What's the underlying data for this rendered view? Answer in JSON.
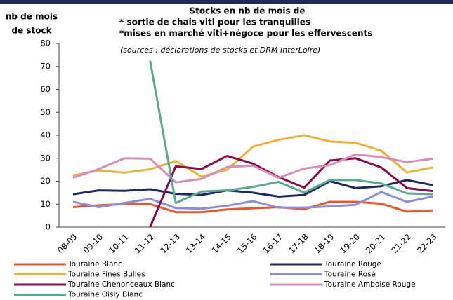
{
  "chart_data": {
    "type": "line",
    "title_lines": [
      "Stocks en nb de mois de",
      "* sortie de chais viti pour les tranquilles",
      "*mises en marché viti+négoce pour les effervescents"
    ],
    "subtitle": "(sources : déclarations de stocks et DRM InterLoire)",
    "y_label_lines": [
      "nb de mois",
      "de stock"
    ],
    "categories": [
      "08-09",
      "09-10",
      "10-11",
      "11-12",
      "12-13",
      "13-14",
      "14-15",
      "15-16",
      "16-17",
      "17-18",
      "18-19",
      "19-20",
      "20-21",
      "21-22",
      "22-23"
    ],
    "ylim": [
      0,
      80
    ],
    "yticks": [
      0,
      10,
      20,
      30,
      40,
      50,
      60,
      70,
      80
    ],
    "series": [
      {
        "name": "Touraine Blanc",
        "color": "#e8562a",
        "values": [
          8.7,
          9.5,
          10,
          10,
          6.5,
          6.5,
          7.7,
          8.2,
          8.7,
          7.8,
          11,
          11,
          10.2,
          6.7,
          7.3
        ]
      },
      {
        "name": "Touraine Rouge",
        "color": "#1f2a5c",
        "values": [
          14.3,
          16,
          15.8,
          16.5,
          14.5,
          14,
          16,
          15,
          13.3,
          14,
          20,
          17,
          17.8,
          20.5,
          18.3
        ]
      },
      {
        "name": "Touraine Fines Bulles",
        "color": "#e8b33c",
        "values": [
          22.5,
          24.7,
          23.7,
          25.2,
          28.8,
          22,
          25,
          35,
          38,
          40,
          37.3,
          36.7,
          33.3,
          23.8,
          26
        ]
      },
      {
        "name": "Touraine Rosé",
        "color": "#8c8fd6",
        "values": [
          11,
          8.7,
          10.5,
          12.3,
          8.3,
          8,
          9.3,
          11.3,
          8.5,
          8.5,
          9,
          9.7,
          15.3,
          11,
          13.3
        ]
      },
      {
        "name": "Touraine Chenonceaux Blanc",
        "color": "#8b0a4a",
        "values": [
          null,
          null,
          null,
          0,
          26.5,
          25.3,
          31,
          27.7,
          21.8,
          17.2,
          29,
          30,
          26,
          17,
          15.7
        ]
      },
      {
        "name": "Touraine Amboise Rouge",
        "color": "#d58fb8",
        "values": [
          21.5,
          25.3,
          30,
          29.8,
          19.5,
          21,
          26.2,
          26.8,
          21.5,
          25.5,
          27,
          31.7,
          30.5,
          28.3,
          29.8
        ]
      },
      {
        "name": "Touraine Oisly Blanc",
        "color": "#5aaa8c",
        "values": [
          null,
          null,
          null,
          72.5,
          10.5,
          15.5,
          16,
          17.5,
          19.7,
          15,
          20.5,
          20.5,
          19,
          14.7,
          14.3
        ]
      }
    ]
  }
}
